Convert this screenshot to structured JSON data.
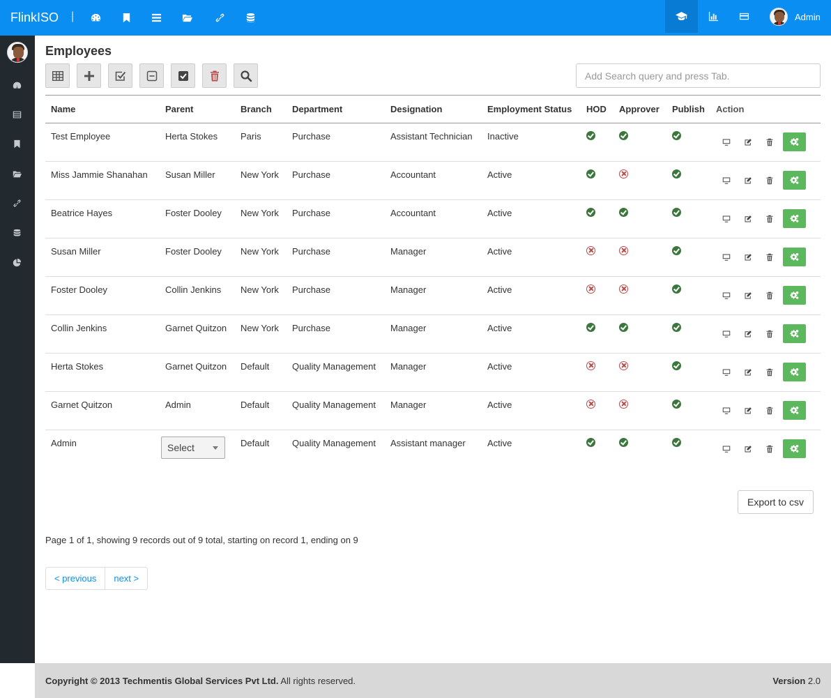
{
  "app": {
    "brand": "FlinkISO",
    "separator": "|"
  },
  "topnav": {
    "icons": [
      "dashboard-icon",
      "bookmark-icon",
      "list-icon",
      "folder-open-icon",
      "link-icon",
      "database-icon"
    ],
    "right_icons": [
      "graduation-cap-icon",
      "bar-chart-icon",
      "credit-card-icon"
    ],
    "user_name": "Admin"
  },
  "sidebar": {
    "icons": [
      "dashboard-icon",
      "table-icon",
      "bookmark-icon",
      "folder-open-icon",
      "link-icon",
      "database-icon",
      "pie-chart-icon"
    ]
  },
  "page": {
    "title": "Employees",
    "search_placeholder": "Add Search query and press Tab."
  },
  "toolbar": {
    "buttons": [
      "table-view",
      "add",
      "select-all",
      "deselect",
      "check",
      "delete",
      "search"
    ]
  },
  "table": {
    "headers": {
      "name": "Name",
      "parent": "Parent",
      "branch": "Branch",
      "department": "Department",
      "designation": "Designation",
      "employment_status": "Employment Status",
      "hod": "HOD",
      "approver": "Approver",
      "publish": "Publish",
      "action": "Action"
    },
    "rows": [
      {
        "name": "Test Employee",
        "parent": "Herta Stokes",
        "branch": "Paris",
        "department": "Purchase",
        "designation": "Assistant Technician",
        "status": "Inactive",
        "hod": true,
        "approver": true,
        "publish": true
      },
      {
        "name": "Miss Jammie Shanahan",
        "parent": "Susan Miller",
        "branch": "New York",
        "department": "Purchase",
        "designation": "Accountant",
        "status": "Active",
        "hod": true,
        "approver": false,
        "publish": true
      },
      {
        "name": "Beatrice Hayes",
        "parent": "Foster Dooley",
        "branch": "New York",
        "department": "Purchase",
        "designation": "Accountant",
        "status": "Active",
        "hod": true,
        "approver": true,
        "publish": true
      },
      {
        "name": "Susan Miller",
        "parent": "Foster Dooley",
        "branch": "New York",
        "department": "Purchase",
        "designation": "Manager",
        "status": "Active",
        "hod": false,
        "approver": false,
        "publish": true
      },
      {
        "name": "Foster Dooley",
        "parent": "Collin Jenkins",
        "branch": "New York",
        "department": "Purchase",
        "designation": "Manager",
        "status": "Active",
        "hod": false,
        "approver": false,
        "publish": true
      },
      {
        "name": "Collin Jenkins",
        "parent": "Garnet Quitzon",
        "branch": "New York",
        "department": "Purchase",
        "designation": "Manager",
        "status": "Active",
        "hod": true,
        "approver": true,
        "publish": true
      },
      {
        "name": "Herta Stokes",
        "parent": "Garnet Quitzon",
        "branch": "Default",
        "department": "Quality Management",
        "designation": "Manager",
        "status": "Active",
        "hod": false,
        "approver": false,
        "publish": true
      },
      {
        "name": "Garnet Quitzon",
        "parent": "Admin",
        "branch": "Default",
        "department": "Quality Management",
        "designation": "Manager",
        "status": "Active",
        "hod": false,
        "approver": false,
        "publish": true
      },
      {
        "name": "Admin",
        "parent_select": "Select",
        "branch": "Default",
        "department": "Quality Management",
        "designation": "Assistant manager",
        "status": "Active",
        "hod": true,
        "approver": true,
        "publish": true
      }
    ]
  },
  "export_label": "Export to csv",
  "paging_info": "Page 1 of 1, showing 9 records out of 9 total, starting on record 1, ending on 9",
  "pager": {
    "previous": "< previous",
    "next": "next >"
  },
  "footer": {
    "copyright_prefix": "Copyright © 2013",
    "company": "Techmentis Global Services Pvt Ltd.",
    "rights": "All rights reserved.",
    "version_label": "Version",
    "version_value": "2.0"
  },
  "colors": {
    "topbar": "#0a8ef2",
    "sidebar": "#22292f",
    "success": "#5cb85c",
    "ok_icon": "#3c763d",
    "no_icon": "#b94a48"
  }
}
